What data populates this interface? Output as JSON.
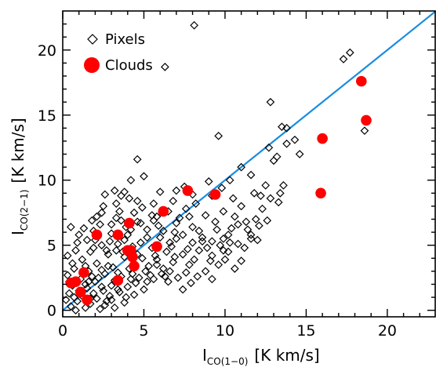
{
  "chart_data": {
    "type": "scatter",
    "xlabel": {
      "main": "I",
      "sub": "CO(1−0)",
      "unit": "[K km/s]"
    },
    "ylabel": {
      "main": "I",
      "sub": "CO(2−1)",
      "unit": "[K km/s]"
    },
    "xlim": [
      0,
      23
    ],
    "ylim": [
      -0.5,
      23
    ],
    "xticks": [
      "0",
      "5",
      "10",
      "15",
      "20"
    ],
    "yticks": [
      "0",
      "5",
      "10",
      "15",
      "20"
    ],
    "grid": false,
    "legend": {
      "placement": "top-left",
      "entries": [
        {
          "label": "Pixels",
          "marker": "diamond-open"
        },
        {
          "label": "Clouds",
          "marker": "circle-filled-red"
        }
      ]
    },
    "colors": {
      "clouds": "#ff0000",
      "line": "#1a8de0",
      "pixels": "#000000"
    },
    "line": {
      "x": [
        0,
        23
      ],
      "y": [
        0,
        23
      ]
    },
    "series": [
      {
        "name": "Pixels",
        "marker": "diamond-open",
        "points": [
          [
            8.1,
            21.9
          ],
          [
            6.3,
            18.7
          ],
          [
            17.3,
            19.3
          ],
          [
            17.7,
            19.8
          ],
          [
            12.8,
            16.0
          ],
          [
            13.5,
            14.1
          ],
          [
            13.8,
            14.0
          ],
          [
            18.6,
            13.8
          ],
          [
            9.6,
            13.4
          ],
          [
            14.3,
            13.1
          ],
          [
            12.7,
            12.5
          ],
          [
            13.8,
            12.8
          ],
          [
            13.2,
            11.8
          ],
          [
            14.6,
            12.0
          ],
          [
            13.0,
            11.5
          ],
          [
            11.0,
            11.0
          ],
          [
            4.6,
            11.6
          ],
          [
            10.3,
            10.0
          ],
          [
            11.6,
            10.4
          ],
          [
            12.5,
            9.6
          ],
          [
            11.8,
            9.0
          ],
          [
            12.2,
            8.8
          ],
          [
            13.4,
            9.0
          ],
          [
            12.8,
            8.6
          ],
          [
            7.5,
            9.5
          ],
          [
            7.0,
            9.2
          ],
          [
            6.0,
            9.1
          ],
          [
            5.0,
            10.3
          ],
          [
            4.2,
            10.0
          ],
          [
            3.8,
            9.1
          ],
          [
            3.2,
            9.2
          ],
          [
            3.6,
            8.8
          ],
          [
            2.6,
            8.9
          ],
          [
            4.6,
            8.4
          ],
          [
            5.6,
            8.2
          ],
          [
            6.8,
            8.4
          ],
          [
            8.2,
            8.2
          ],
          [
            9.2,
            8.8
          ],
          [
            9.8,
            9.4
          ],
          [
            10.5,
            8.6
          ],
          [
            11.0,
            8.0
          ],
          [
            10.6,
            7.2
          ],
          [
            9.9,
            7.6
          ],
          [
            8.8,
            7.3
          ],
          [
            7.6,
            7.8
          ],
          [
            6.5,
            7.6
          ],
          [
            5.5,
            7.3
          ],
          [
            4.4,
            7.5
          ],
          [
            3.5,
            7.6
          ],
          [
            2.5,
            8.0
          ],
          [
            2.1,
            7.2
          ],
          [
            1.8,
            6.9
          ],
          [
            3.0,
            6.6
          ],
          [
            3.9,
            6.4
          ],
          [
            4.8,
            6.7
          ],
          [
            5.9,
            6.5
          ],
          [
            7.0,
            6.7
          ],
          [
            8.0,
            6.4
          ],
          [
            9.5,
            6.2
          ],
          [
            10.2,
            5.8
          ],
          [
            11.4,
            6.2
          ],
          [
            12.1,
            6.5
          ],
          [
            11.6,
            5.8
          ],
          [
            10.8,
            5.1
          ],
          [
            9.7,
            5.0
          ],
          [
            8.6,
            5.3
          ],
          [
            7.4,
            5.8
          ],
          [
            6.6,
            5.2
          ],
          [
            5.2,
            5.6
          ],
          [
            4.0,
            5.8
          ],
          [
            3.0,
            5.9
          ],
          [
            1.9,
            6.1
          ],
          [
            1.5,
            5.4
          ],
          [
            2.4,
            5.0
          ],
          [
            3.4,
            5.1
          ],
          [
            4.3,
            4.9
          ],
          [
            5.5,
            4.8
          ],
          [
            6.4,
            4.5
          ],
          [
            7.4,
            4.3
          ],
          [
            8.4,
            4.6
          ],
          [
            9.2,
            4.2
          ],
          [
            10.2,
            4.5
          ],
          [
            11.0,
            3.8
          ],
          [
            10.6,
            3.2
          ],
          [
            9.6,
            3.5
          ],
          [
            8.8,
            3.0
          ],
          [
            7.8,
            3.5
          ],
          [
            6.8,
            3.7
          ],
          [
            5.8,
            3.9
          ],
          [
            4.9,
            4.0
          ],
          [
            3.8,
            4.1
          ],
          [
            2.8,
            4.3
          ],
          [
            1.7,
            4.5
          ],
          [
            0.8,
            4.6
          ],
          [
            0.5,
            6.4
          ],
          [
            0.9,
            5.2
          ],
          [
            1.2,
            3.9
          ],
          [
            2.1,
            3.6
          ],
          [
            3.1,
            3.3
          ],
          [
            4.1,
            3.2
          ],
          [
            5.1,
            3.0
          ],
          [
            6.1,
            2.8
          ],
          [
            7.1,
            2.5
          ],
          [
            7.9,
            2.1
          ],
          [
            7.4,
            1.6
          ],
          [
            6.5,
            2.2
          ],
          [
            5.6,
            2.4
          ],
          [
            4.7,
            2.5
          ],
          [
            3.6,
            2.6
          ],
          [
            2.6,
            2.8
          ],
          [
            1.6,
            3.0
          ],
          [
            0.7,
            3.2
          ],
          [
            0.3,
            2.7
          ],
          [
            1.1,
            2.4
          ],
          [
            2.0,
            2.2
          ],
          [
            3.0,
            1.9
          ],
          [
            4.0,
            1.8
          ],
          [
            5.0,
            1.6
          ],
          [
            4.4,
            1.2
          ],
          [
            3.5,
            1.4
          ],
          [
            2.5,
            1.5
          ],
          [
            1.5,
            1.7
          ],
          [
            0.6,
            1.9
          ],
          [
            0.4,
            1.3
          ],
          [
            1.2,
            1.1
          ],
          [
            2.1,
            0.9
          ],
          [
            3.0,
            0.8
          ],
          [
            3.8,
            0.6
          ],
          [
            2.6,
            0.4
          ],
          [
            1.7,
            0.5
          ],
          [
            0.9,
            0.7
          ],
          [
            0.2,
            0.8
          ],
          [
            0.5,
            0.3
          ],
          [
            1.4,
            0.2
          ],
          [
            2.3,
            0.1
          ],
          [
            3.2,
            0.2
          ],
          [
            0.8,
            0.0
          ],
          [
            1.8,
            2.6
          ],
          [
            2.8,
            3.4
          ],
          [
            3.3,
            4.6
          ],
          [
            4.4,
            3.6
          ],
          [
            5.3,
            3.4
          ],
          [
            6.2,
            3.2
          ],
          [
            6.9,
            4.1
          ],
          [
            8.1,
            3.9
          ],
          [
            9.1,
            3.8
          ],
          [
            10.0,
            3.9
          ],
          [
            11.2,
            4.8
          ],
          [
            12.0,
            5.4
          ],
          [
            9.4,
            6.8
          ],
          [
            8.4,
            6.1
          ],
          [
            7.2,
            7.1
          ],
          [
            6.2,
            6.1
          ],
          [
            5.2,
            6.2
          ],
          [
            4.2,
            6.2
          ],
          [
            3.3,
            7.1
          ],
          [
            2.3,
            6.6
          ],
          [
            1.3,
            6.3
          ],
          [
            1.0,
            5.8
          ],
          [
            2.0,
            5.4
          ],
          [
            2.7,
            4.6
          ],
          [
            3.7,
            4.5
          ],
          [
            4.6,
            4.3
          ],
          [
            5.7,
            4.2
          ],
          [
            6.7,
            4.9
          ],
          [
            7.7,
            4.7
          ],
          [
            8.6,
            5.6
          ],
          [
            9.9,
            5.5
          ],
          [
            10.8,
            6.6
          ],
          [
            11.9,
            7.0
          ],
          [
            7.0,
            5.5
          ],
          [
            6.0,
            5.6
          ],
          [
            4.8,
            5.2
          ],
          [
            3.8,
            5.4
          ],
          [
            2.9,
            5.3
          ],
          [
            1.9,
            4.8
          ],
          [
            1.4,
            3.4
          ],
          [
            2.4,
            3.1
          ],
          [
            3.4,
            2.9
          ],
          [
            4.3,
            2.8
          ],
          [
            5.4,
            2.7
          ],
          [
            6.3,
            2.6
          ],
          [
            0.3,
            4.2
          ],
          [
            0.6,
            3.6
          ],
          [
            1.0,
            1.5
          ],
          [
            1.9,
            1.3
          ],
          [
            2.9,
            1.1
          ],
          [
            3.9,
            1.0
          ],
          [
            0.4,
            2.2
          ],
          [
            1.4,
            2.0
          ],
          [
            2.4,
            1.8
          ],
          [
            3.4,
            1.6
          ],
          [
            4.5,
            2.1
          ],
          [
            0.7,
            1.0
          ],
          [
            1.7,
            0.9
          ],
          [
            2.7,
            0.7
          ],
          [
            5.8,
            3.5
          ],
          [
            6.6,
            3.0
          ],
          [
            7.6,
            2.9
          ],
          [
            8.3,
            2.6
          ],
          [
            9.2,
            2.4
          ],
          [
            8.9,
            4.8
          ],
          [
            9.9,
            4.6
          ],
          [
            10.4,
            6.3
          ],
          [
            11.3,
            6.8
          ],
          [
            12.6,
            6.9
          ],
          [
            13.6,
            9.6
          ],
          [
            9.0,
            9.9
          ],
          [
            8.0,
            8.9
          ],
          [
            7.8,
            7.2
          ],
          [
            5.8,
            7.2
          ],
          [
            4.9,
            7.9
          ],
          [
            4.1,
            8.6
          ],
          [
            3.3,
            8.2
          ],
          [
            2.4,
            7.5
          ],
          [
            3.6,
            6.9
          ],
          [
            4.6,
            6.8
          ],
          [
            5.6,
            6.9
          ],
          [
            6.9,
            6.0
          ],
          [
            8.0,
            5.2
          ],
          [
            9.2,
            5.3
          ],
          [
            10.3,
            5.2
          ],
          [
            11.6,
            5.5
          ],
          [
            12.3,
            7.8
          ],
          [
            13.3,
            8.3
          ],
          [
            1.6,
            2.2
          ],
          [
            2.2,
            2.5
          ],
          [
            3.2,
            2.3
          ],
          [
            4.2,
            2.4
          ],
          [
            5.2,
            2.2
          ]
        ]
      },
      {
        "name": "Clouds",
        "marker": "circle-filled",
        "points": [
          [
            0.8,
            2.2
          ],
          [
            0.5,
            2.1
          ],
          [
            1.1,
            1.4
          ],
          [
            1.5,
            0.8
          ],
          [
            1.3,
            2.9
          ],
          [
            3.4,
            2.3
          ],
          [
            2.1,
            5.8
          ],
          [
            3.4,
            5.8
          ],
          [
            4.0,
            4.6
          ],
          [
            4.2,
            4.6
          ],
          [
            4.1,
            6.7
          ],
          [
            4.4,
            3.4
          ],
          [
            4.3,
            4.1
          ],
          [
            5.8,
            4.9
          ],
          [
            6.2,
            7.6
          ],
          [
            7.7,
            9.2
          ],
          [
            9.4,
            8.9
          ],
          [
            15.9,
            9.0
          ],
          [
            16.0,
            13.2
          ],
          [
            18.4,
            17.6
          ],
          [
            18.7,
            14.6
          ]
        ]
      }
    ]
  }
}
